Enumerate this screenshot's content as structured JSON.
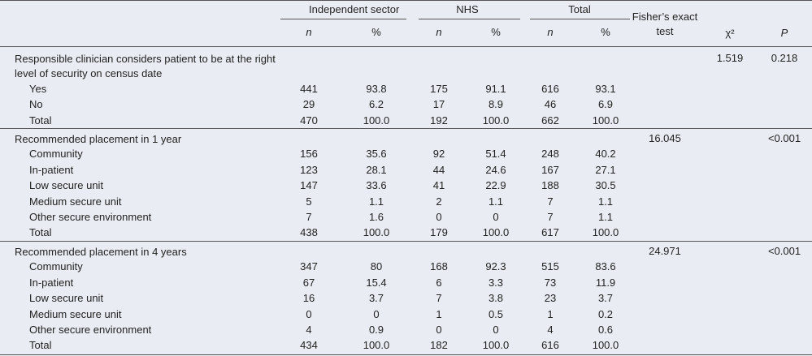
{
  "table": {
    "header": {
      "groups": [
        "Independent sector",
        "NHS",
        "Total"
      ],
      "sub": [
        "n",
        "%",
        "n",
        "%",
        "n",
        "%"
      ],
      "fisher": "Fisher’s exact test",
      "chi": "χ²",
      "p": "P"
    },
    "sections": [
      {
        "title": "Responsible clinician considers patient to be at the right level of security on census date",
        "chi": "1.519",
        "p": "0.218",
        "rows": [
          [
            "Yes",
            "441",
            "93.8",
            "175",
            "91.1",
            "616",
            "93.1"
          ],
          [
            "No",
            "29",
            "6.2",
            "17",
            "8.9",
            "46",
            "6.9"
          ],
          [
            "Total",
            "470",
            "100.0",
            "192",
            "100.0",
            "662",
            "100.0"
          ]
        ]
      },
      {
        "title": "Recommended placement in 1 year",
        "fisher": "16.045",
        "p": "<0.001",
        "rows": [
          [
            "Community",
            "156",
            "35.6",
            "92",
            "51.4",
            "248",
            "40.2"
          ],
          [
            "In-patient",
            "123",
            "28.1",
            "44",
            "24.6",
            "167",
            "27.1"
          ],
          [
            "Low secure unit",
            "147",
            "33.6",
            "41",
            "22.9",
            "188",
            "30.5"
          ],
          [
            "Medium secure unit",
            "5",
            "1.1",
            "2",
            "1.1",
            "7",
            "1.1"
          ],
          [
            "Other secure environment",
            "7",
            "1.6",
            "0",
            "0",
            "7",
            "1.1"
          ],
          [
            "Total",
            "438",
            "100.0",
            "179",
            "100.0",
            "617",
            "100.0"
          ]
        ]
      },
      {
        "title": "Recommended placement in 4 years",
        "fisher": "24.971",
        "p": "<0.001",
        "rows": [
          [
            "Community",
            "347",
            "80",
            "168",
            "92.3",
            "515",
            "83.6"
          ],
          [
            "In-patient",
            "67",
            "15.4",
            "6",
            "3.3",
            "73",
            "11.9"
          ],
          [
            "Low secure unit",
            "16",
            "3.7",
            "7",
            "3.8",
            "23",
            "3.7"
          ],
          [
            "Medium secure unit",
            "0",
            "0",
            "1",
            "0.5",
            "1",
            "0.2"
          ],
          [
            "Other secure environment",
            "4",
            "0.9",
            "0",
            "0",
            "4",
            "0.6"
          ],
          [
            "Total",
            "434",
            "100.0",
            "182",
            "100.0",
            "616",
            "100.0"
          ]
        ]
      }
    ]
  }
}
